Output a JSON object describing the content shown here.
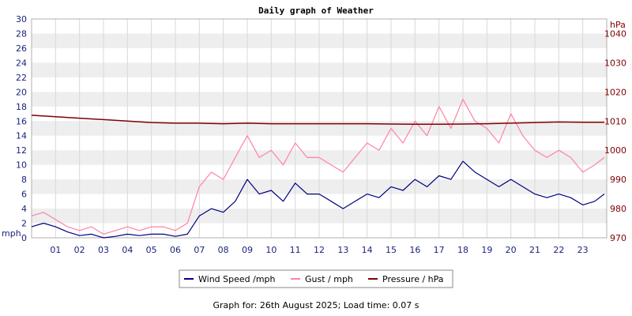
{
  "chart_data": {
    "type": "line",
    "title": "Daily graph of Weather",
    "x_ticks": [
      "01",
      "02",
      "03",
      "04",
      "05",
      "06",
      "07",
      "08",
      "09",
      "10",
      "11",
      "12",
      "13",
      "14",
      "15",
      "16",
      "17",
      "18",
      "19",
      "20",
      "21",
      "22",
      "23"
    ],
    "xlim_hours": [
      0,
      24
    ],
    "left_axis": {
      "label": "mph",
      "ylim": [
        0,
        30
      ],
      "ticks": [
        "0",
        "2",
        "4",
        "6",
        "8",
        "10",
        "12",
        "14",
        "16",
        "18",
        "20",
        "22",
        "24",
        "26",
        "28",
        "30"
      ],
      "color": "#1a237e"
    },
    "right_axis": {
      "label": "hPa",
      "ylim": [
        970,
        1045
      ],
      "ticks": [
        "970",
        "980",
        "990",
        "1000",
        "1010",
        "1020",
        "1030",
        "1040"
      ],
      "color": "#800000"
    },
    "series": [
      {
        "name": "Wind Speed /mph",
        "color": "#000080",
        "axis": "left",
        "hours": [
          0,
          0.5,
          1,
          1.5,
          2,
          2.5,
          3,
          3.5,
          4,
          4.5,
          5,
          5.5,
          6,
          6.5,
          7,
          7.5,
          8,
          8.5,
          9,
          9.5,
          10,
          10.5,
          11,
          11.5,
          12,
          12.5,
          13,
          13.5,
          14,
          14.5,
          15,
          15.5,
          16,
          16.5,
          17,
          17.5,
          18,
          18.5,
          19,
          19.5,
          20,
          20.5,
          21,
          21.5,
          22,
          22.5,
          23,
          23.5,
          23.9
        ],
        "values": [
          1.5,
          2,
          1.5,
          0.8,
          0.3,
          0.5,
          0,
          0.2,
          0.5,
          0.3,
          0.5,
          0.5,
          0.2,
          0.5,
          3,
          4,
          3.5,
          5,
          8,
          6,
          6.5,
          5,
          7.5,
          6,
          6,
          5,
          4,
          5,
          6,
          5.5,
          7,
          6.5,
          8,
          7,
          8.5,
          8,
          10.5,
          9,
          8,
          7,
          8,
          7,
          6,
          5.5,
          6,
          5.5,
          4.5,
          5,
          6
        ]
      },
      {
        "name": "Gust / mph",
        "color": "#ff80a8",
        "axis": "left",
        "hours": [
          0,
          0.5,
          1,
          1.5,
          2,
          2.5,
          3,
          3.5,
          4,
          4.5,
          5,
          5.5,
          6,
          6.5,
          7,
          7.5,
          8,
          8.5,
          9,
          9.5,
          10,
          10.5,
          11,
          11.5,
          12,
          12.5,
          13,
          13.5,
          14,
          14.5,
          15,
          15.5,
          16,
          16.5,
          17,
          17.5,
          18,
          18.5,
          19,
          19.5,
          20,
          20.5,
          21,
          21.5,
          22,
          22.5,
          23,
          23.5,
          23.9
        ],
        "values": [
          3,
          3.5,
          2.5,
          1.5,
          1,
          1.5,
          0.5,
          1,
          1.5,
          1,
          1.5,
          1.5,
          1,
          2,
          7,
          9,
          8,
          11,
          14,
          11,
          12,
          10,
          13,
          11,
          11,
          10,
          9,
          11,
          13,
          12,
          15,
          13,
          16,
          14,
          18,
          15,
          19,
          16,
          15,
          13,
          17,
          14,
          12,
          11,
          12,
          11,
          9,
          10,
          11
        ]
      },
      {
        "name": "Pressure / hPa",
        "color": "#800000",
        "axis": "right",
        "hours": [
          0,
          1,
          2,
          3,
          4,
          5,
          6,
          7,
          8,
          9,
          10,
          11,
          12,
          13,
          14,
          15,
          16,
          17,
          18,
          19,
          20,
          21,
          22,
          23,
          23.9
        ],
        "values": [
          1012,
          1011.5,
          1011,
          1010.5,
          1010,
          1009.5,
          1009.3,
          1009.3,
          1009.1,
          1009.3,
          1009.1,
          1009.1,
          1009.1,
          1009.1,
          1009.1,
          1009,
          1008.9,
          1008.9,
          1009,
          1009.1,
          1009.3,
          1009.5,
          1009.7,
          1009.6,
          1009.6
        ]
      }
    ]
  },
  "footer": {
    "text": "Graph for: 26th August 2025; Load time: 0.07 s"
  }
}
